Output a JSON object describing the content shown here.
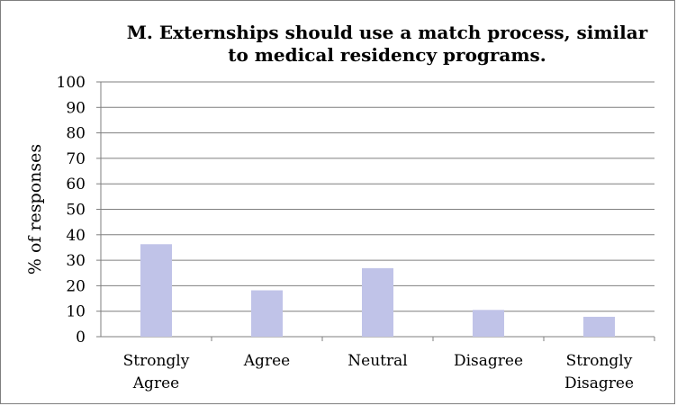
{
  "chart_data": {
    "type": "bar",
    "title": "M. Externships should use a match process, similar\nto medical residency programs.",
    "xlabel": "",
    "ylabel": "% of responses",
    "categories": [
      "Strongly Agree",
      "Agree",
      "Neutral",
      "Disagree",
      "Strongly Disagree"
    ],
    "category_lines": [
      [
        "Strongly",
        "Agree"
      ],
      [
        "Agree"
      ],
      [
        "Neutral"
      ],
      [
        "Disagree"
      ],
      [
        "Strongly",
        "Disagree"
      ]
    ],
    "values": [
      36.3,
      18.2,
      26.9,
      10.5,
      7.8
    ],
    "ylim": [
      0,
      100
    ],
    "yticks": [
      0,
      10,
      20,
      30,
      40,
      50,
      60,
      70,
      80,
      90,
      100
    ],
    "grid": true,
    "legend": "none",
    "bar_color": "#c0c3e8",
    "grid_color": "#7f7f7f"
  }
}
